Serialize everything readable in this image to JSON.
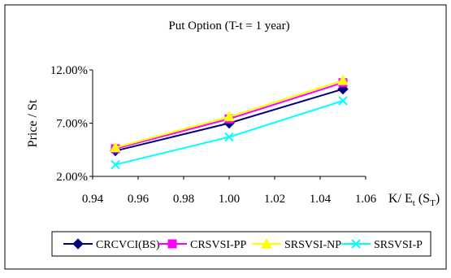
{
  "chart_data": {
    "type": "line",
    "title": "Put Option (T-t = 1 year)",
    "xlabel": "K/ E",
    "xlabel_sub1": "t",
    "xlabel_paren": " (S",
    "xlabel_sub2": "T",
    "xlabel_close": ")",
    "ylabel": "Price / St",
    "xlim": [
      0.94,
      1.06
    ],
    "ylim": [
      0.02,
      0.12
    ],
    "x_ticks": [
      0.94,
      0.96,
      0.98,
      1.0,
      1.02,
      1.04,
      1.06
    ],
    "x_tick_labels": [
      "0.94",
      "0.96",
      "0.98",
      "1.00",
      "1.02",
      "1.04",
      "1.06"
    ],
    "y_ticks": [
      0.02,
      0.07,
      0.12
    ],
    "y_tick_labels": [
      "2.00%",
      "7.00%",
      "12.00%"
    ],
    "grid": false,
    "legend_position": "bottom",
    "x": [
      0.95,
      1.0,
      1.05
    ],
    "series": [
      {
        "name": "CRCVCI(BS)",
        "values": [
          0.044,
          0.07,
          0.102
        ],
        "color": "#000080",
        "marker": "diamond"
      },
      {
        "name": "CRSVSI-PP",
        "values": [
          0.046,
          0.074,
          0.108
        ],
        "color": "#ff00ff",
        "marker": "square"
      },
      {
        "name": "SRSVSI-NP",
        "values": [
          0.047,
          0.076,
          0.11
        ],
        "color": "#ffff00",
        "marker": "triangle"
      },
      {
        "name": "SRSVSI-P",
        "values": [
          0.031,
          0.057,
          0.091
        ],
        "color": "#00ffff",
        "marker": "x"
      }
    ]
  }
}
